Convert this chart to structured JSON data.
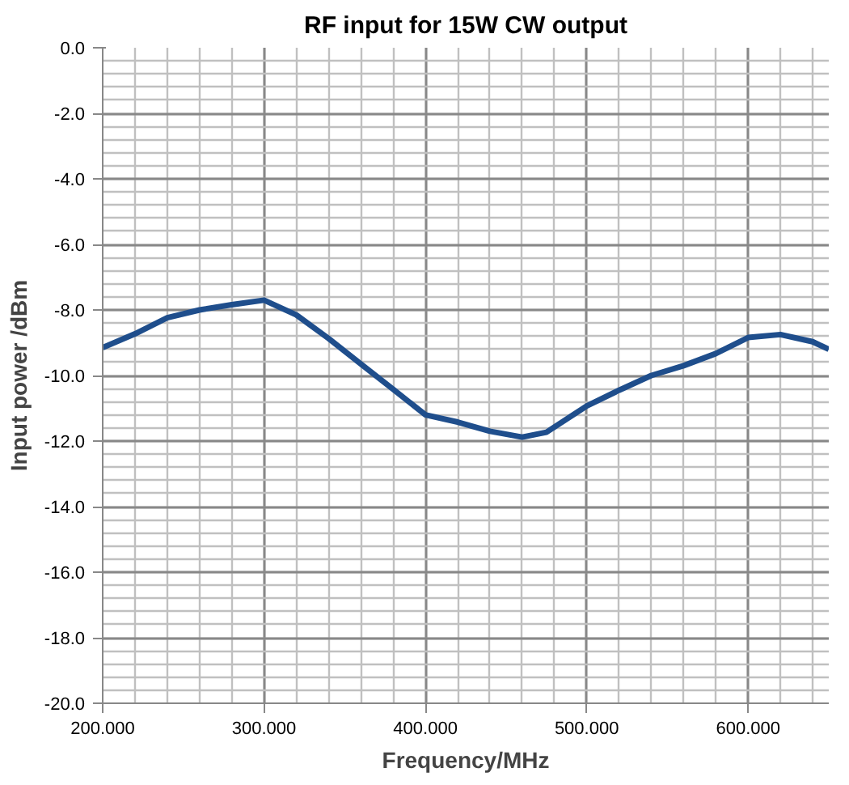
{
  "chart_data": {
    "type": "line",
    "title": "RF input for 15W CW output",
    "xlabel": "Frequency/MHz",
    "ylabel": "Input power /dBm",
    "x": [
      200,
      220,
      240,
      260,
      280,
      300,
      320,
      340,
      360,
      380,
      400,
      420,
      440,
      460,
      475,
      500,
      520,
      540,
      560,
      580,
      600,
      620,
      640,
      650
    ],
    "series": [
      {
        "color": "#1f4e8c",
        "values": [
          -9.15,
          -8.73,
          -8.24,
          -8.0,
          -7.84,
          -7.7,
          -8.15,
          -8.87,
          -9.65,
          -10.42,
          -11.2,
          -11.42,
          -11.7,
          -11.88,
          -11.73,
          -10.93,
          -10.45,
          -10.0,
          -9.7,
          -9.33,
          -8.84,
          -8.75,
          -8.97,
          -9.2
        ]
      }
    ],
    "xlim": [
      200,
      650
    ],
    "ylim": [
      -20,
      0
    ],
    "xticks": [
      {
        "value": 200,
        "label": "200.000"
      },
      {
        "value": 300,
        "label": "300.000"
      },
      {
        "value": 400,
        "label": "400.000"
      },
      {
        "value": 500,
        "label": "500.000"
      },
      {
        "value": 600,
        "label": "600.000"
      }
    ],
    "yticks": [
      {
        "value": 0,
        "label": "0.0"
      },
      {
        "value": -2,
        "label": "-2.0"
      },
      {
        "value": -4,
        "label": "-4.0"
      },
      {
        "value": -6,
        "label": "-6.0"
      },
      {
        "value": -8,
        "label": "-8.0"
      },
      {
        "value": -10,
        "label": "-10.0"
      },
      {
        "value": -12,
        "label": "-12.0"
      },
      {
        "value": -14,
        "label": "-14.0"
      },
      {
        "value": -16,
        "label": "-16.0"
      },
      {
        "value": -18,
        "label": "-18.0"
      },
      {
        "value": -20,
        "label": "-20.0"
      }
    ],
    "grid": true,
    "marker": "none",
    "line_style": "solid"
  }
}
